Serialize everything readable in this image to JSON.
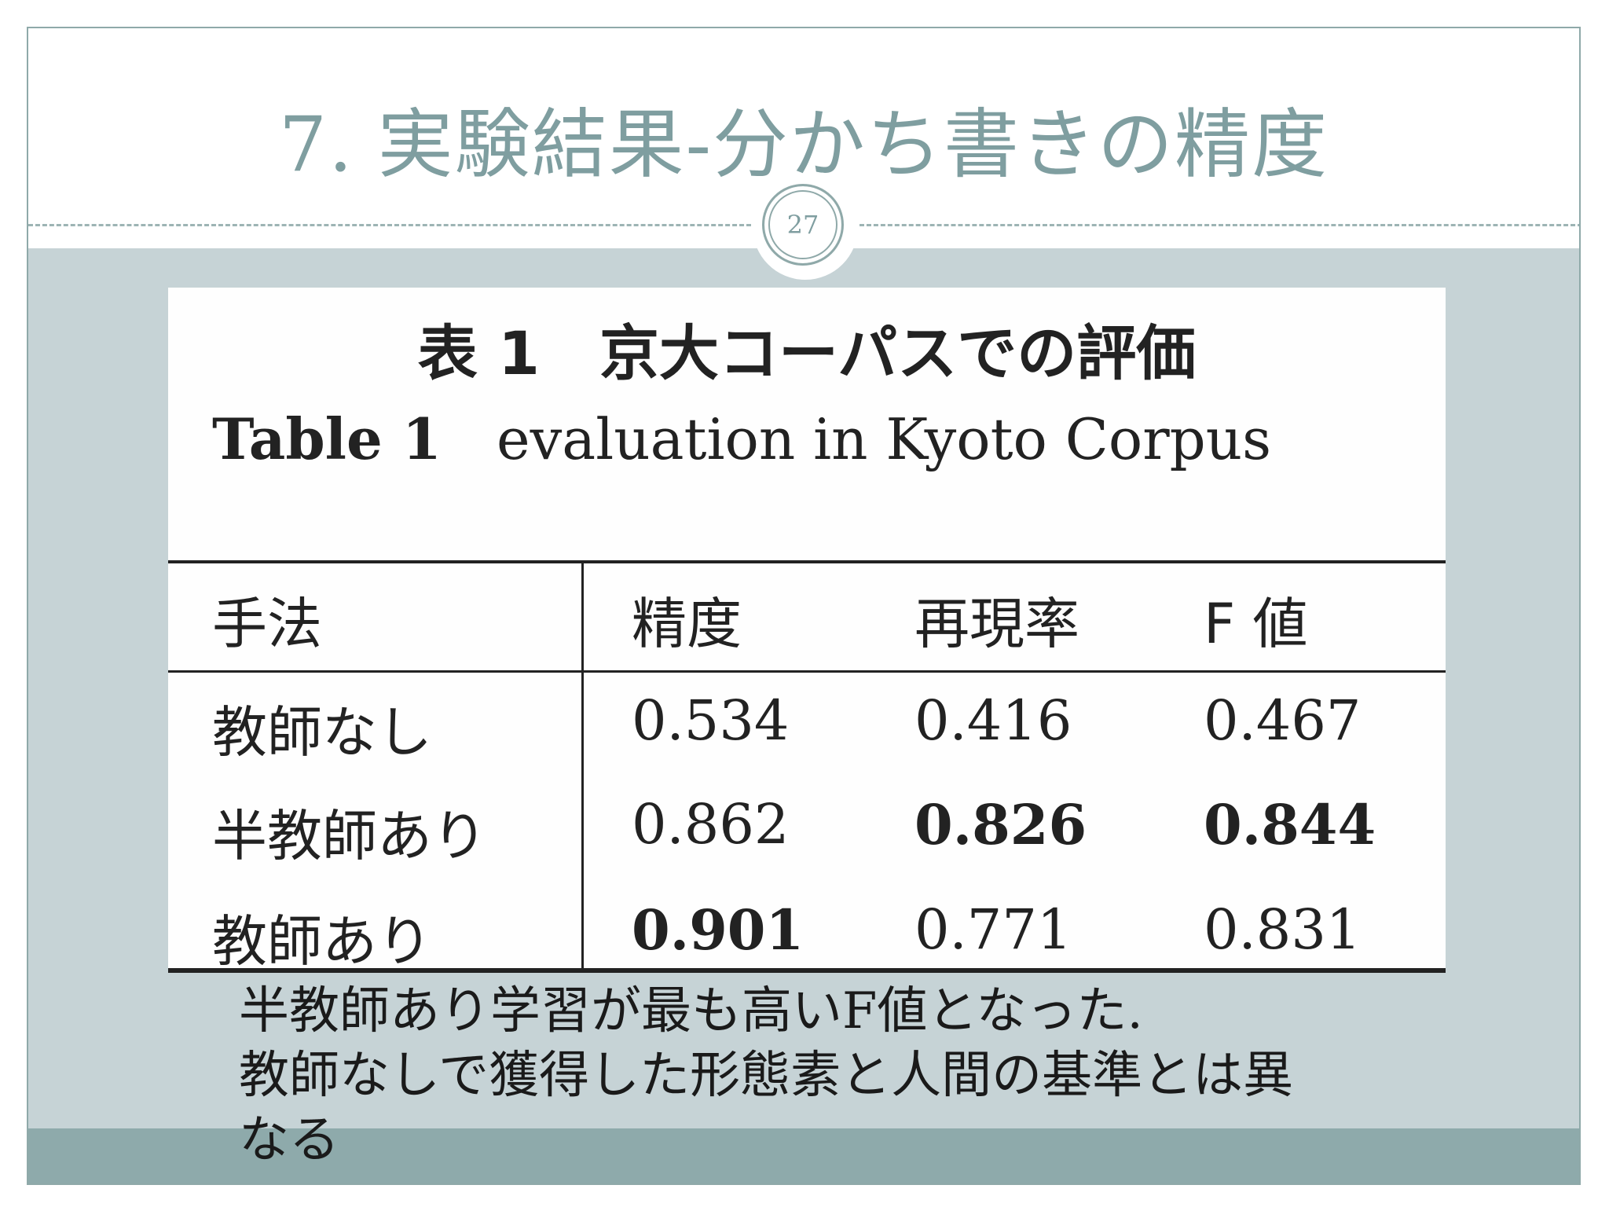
{
  "slide": {
    "title_number": "7.",
    "title_text": "実験結果-分かち書きの精度",
    "page_number": "27"
  },
  "table": {
    "caption_jp": "表 1　京大コーパスでの評価",
    "caption_en_label": "Table 1",
    "caption_en_text": "evaluation in Kyoto Corpus",
    "headers": [
      "手法",
      "精度",
      "再現率",
      "F 値"
    ],
    "rows": [
      {
        "method": "教師なし",
        "precision": "0.534",
        "recall": "0.416",
        "f": "0.467"
      },
      {
        "method": "半教師あり",
        "precision": "0.862",
        "recall": "0.826",
        "f": "0.844"
      },
      {
        "method": "教師あり",
        "precision": "0.901",
        "recall": "0.771",
        "f": "0.831"
      }
    ]
  },
  "notes": {
    "line1": "半教師あり学習が最も高いF値となった.",
    "line2": "教師なしで獲得した形態素と人間の基準とは異",
    "line3": "なる"
  },
  "colors": {
    "accent": "#7f9ea0",
    "content_bg": "#c6d3d6",
    "footer_band": "#8eaaab"
  }
}
